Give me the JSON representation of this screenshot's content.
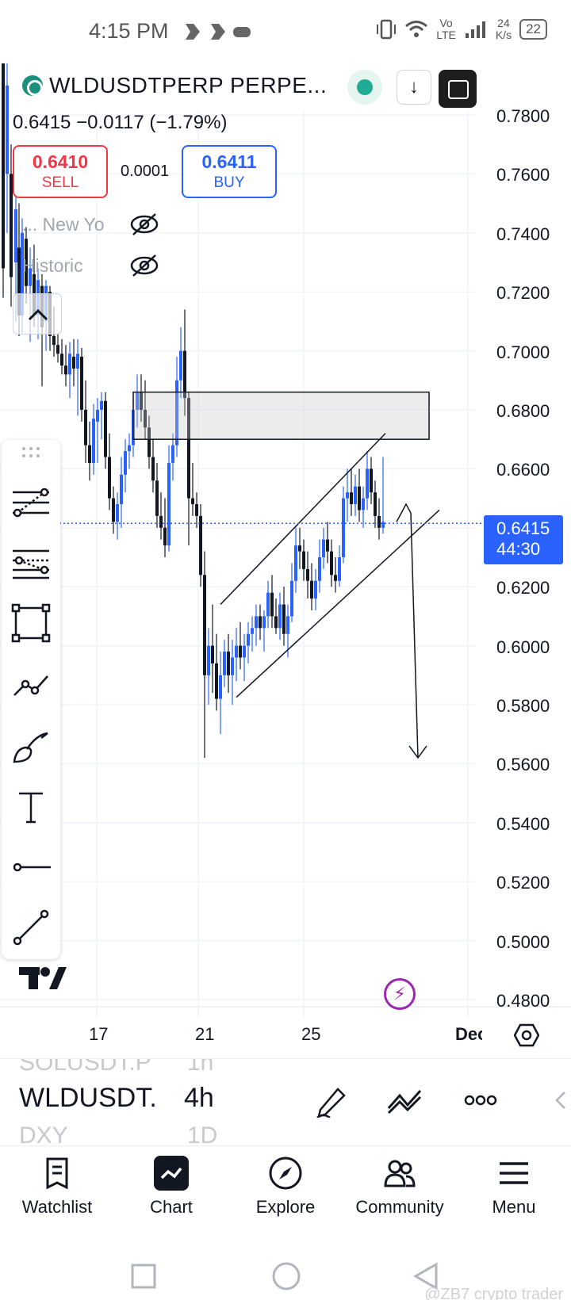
{
  "status_bar": {
    "time": "4:15 PM",
    "net_line1": "Vo",
    "net_line2": "LTE",
    "speed_line1": "24",
    "speed_line2": "K/s",
    "battery": "22"
  },
  "header": {
    "symbol_title": "WLDUSDTPERP PERPE...",
    "price_line": "0.6415  −0.0117 (−1.79%)"
  },
  "trade": {
    "sell_price": "0.6410",
    "sell_label": "SELL",
    "spread": "0.0001",
    "buy_price": "0.6411",
    "buy_label": "BUY"
  },
  "indicators": [
    {
      "label": "... New Yo"
    },
    {
      "label": "Historic"
    }
  ],
  "price_axis": {
    "labels": [
      "0.7800",
      "0.7600",
      "0.7400",
      "0.7200",
      "0.7000",
      "0.6800",
      "0.6600",
      "0.6400",
      "0.6200",
      "0.6000",
      "0.5800",
      "0.5600",
      "0.5400",
      "0.5200",
      "0.5000",
      "0.4800"
    ],
    "current_price": "0.6415",
    "countdown": "44:30"
  },
  "time_axis": {
    "labels": [
      "17",
      "21",
      "25",
      "Dec"
    ]
  },
  "chart_data": {
    "type": "candlestick",
    "ylim": [
      0.48,
      0.79
    ],
    "current_price": 0.6415,
    "zone": {
      "top": 0.686,
      "bottom": 0.67
    },
    "up_color": "#2962ff",
    "down_color": "#131722"
  },
  "switcher": {
    "prev_symbol": "SOLUSDT.P",
    "prev_interval": "1h",
    "symbol": "WLDUSDT.P",
    "interval": "4h",
    "next_symbol": "DXY",
    "next_interval": "1D"
  },
  "bottom_nav": [
    {
      "label": "Watchlist",
      "icon": "watchlist-icon"
    },
    {
      "label": "Chart",
      "icon": "chart-icon"
    },
    {
      "label": "Explore",
      "icon": "compass-icon"
    },
    {
      "label": "Community",
      "icon": "community-icon"
    },
    {
      "label": "Menu",
      "icon": "menu-icon"
    }
  ],
  "watermark": "@ZB7 crypto trader"
}
